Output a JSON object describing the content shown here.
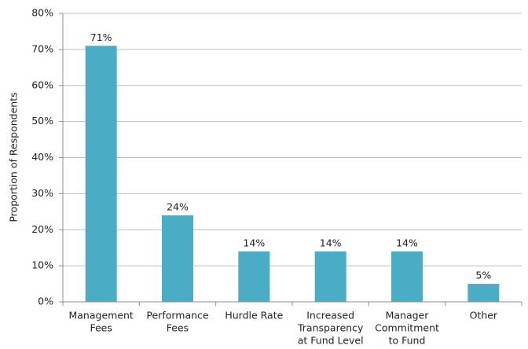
{
  "chart_data": {
    "type": "bar",
    "y_label": "Proportion of Respondents",
    "categories": [
      [
        "Management",
        "Fees"
      ],
      [
        "Performance",
        "Fees"
      ],
      [
        "Hurdle Rate"
      ],
      [
        "Increased",
        "Transparency",
        "at Fund Level"
      ],
      [
        "Manager",
        "Commitment",
        "to Fund"
      ],
      [
        "Other"
      ]
    ],
    "values": [
      71,
      24,
      14,
      14,
      14,
      5
    ],
    "value_labels": [
      "71%",
      "24%",
      "14%",
      "14%",
      "14%",
      "5%"
    ],
    "color": "#4bacc6",
    "ylim": [
      0,
      80
    ],
    "yticks": [
      {
        "value": 0,
        "label": "0%"
      },
      {
        "value": 10,
        "label": "10%"
      },
      {
        "value": 20,
        "label": "20%"
      },
      {
        "value": 30,
        "label": "30%"
      },
      {
        "value": 40,
        "label": "40%"
      },
      {
        "value": 50,
        "label": "50%"
      },
      {
        "value": 60,
        "label": "60%"
      },
      {
        "value": 70,
        "label": "70%"
      },
      {
        "value": 80,
        "label": "80%"
      }
    ],
    "grid": true
  }
}
